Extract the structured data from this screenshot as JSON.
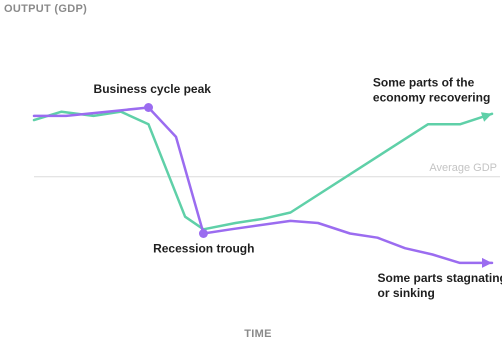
{
  "chart_data": {
    "type": "line",
    "ylabel": "OUTPUT (GDP)",
    "xlabel": "TIME",
    "xlim": [
      0,
      100
    ],
    "ylim": [
      0,
      100
    ],
    "grid": false,
    "reference_line": {
      "label": "Average GDP",
      "y": 52,
      "color": "#dcdcdc"
    },
    "series": [
      {
        "color": "#5fd0a8",
        "x": [
          0,
          6,
          13,
          19,
          25,
          33,
          37,
          44,
          50,
          56,
          86,
          93,
          100
        ],
        "y": [
          79,
          83,
          81,
          83,
          77,
          33,
          27,
          30,
          32,
          35,
          77,
          77,
          82
        ],
        "end_marker": "arrow"
      },
      {
        "color": "#9b6cf0",
        "x": [
          0,
          7,
          25,
          31,
          37,
          43,
          56,
          62,
          69,
          75,
          81,
          87,
          93,
          100
        ],
        "y": [
          81,
          81,
          85,
          71,
          25,
          27,
          31,
          30,
          25,
          23,
          18,
          15,
          11,
          11
        ],
        "markers_at_index": [
          2,
          4
        ],
        "end_marker": "arrow"
      }
    ],
    "annotations": [
      {
        "text": [
          "Business cycle peak"
        ],
        "anchor": "start",
        "x": 13,
        "y": 92
      },
      {
        "text": [
          "Some parts of the",
          "economy recovering"
        ],
        "anchor": "start",
        "x": 74,
        "y": 95
      },
      {
        "text": [
          "Recession trough"
        ],
        "anchor": "start",
        "x": 26,
        "y": 16
      },
      {
        "text": [
          "Some parts stagnating",
          "or sinking"
        ],
        "anchor": "start",
        "x": 75,
        "y": 2
      }
    ]
  }
}
